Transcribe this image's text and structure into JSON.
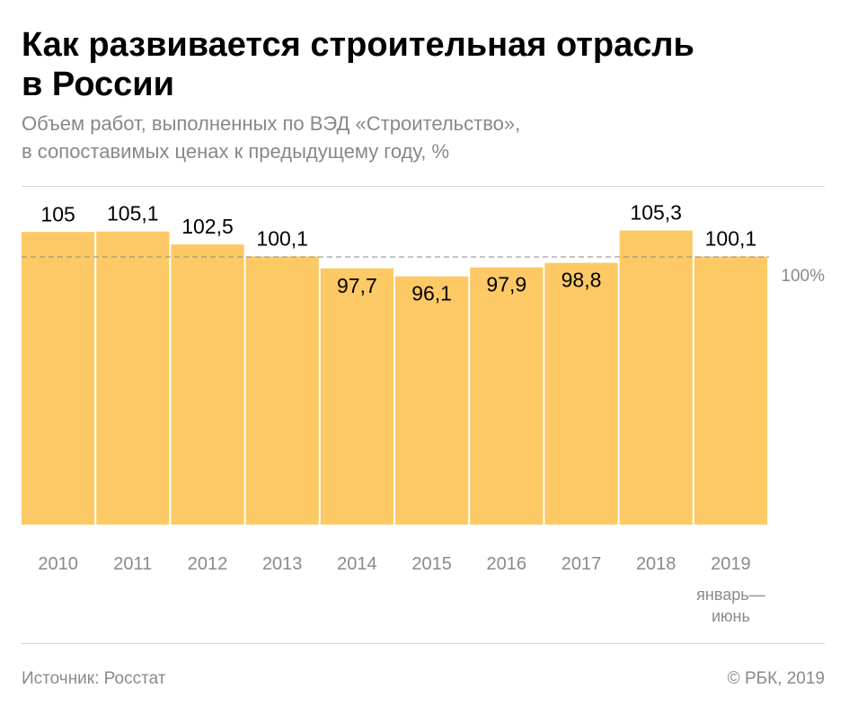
{
  "header": {
    "title_line1": "Как развивается строительная отрасль",
    "title_line2": "в России",
    "subtitle_line1": "Объем работ, выполненных по ВЭД «Строительство»,",
    "subtitle_line2": "в сопоставимых ценах к предыдущему году, %"
  },
  "footer": {
    "source": "Источник: Росстат",
    "copyright": "© РБК, 2019"
  },
  "colors": {
    "bar": "#fcc964",
    "reference_line": "#8a8a8a",
    "label": "#000000",
    "tick": "#8a8a8a"
  },
  "chart_data": {
    "type": "bar",
    "categories": [
      "2010",
      "2011",
      "2012",
      "2013",
      "2014",
      "2015",
      "2016",
      "2017",
      "2018",
      "2019"
    ],
    "category_notes": {
      "2019": [
        "январь—",
        "июнь"
      ]
    },
    "values": [
      105,
      105.1,
      102.5,
      100.1,
      97.7,
      96.1,
      97.9,
      98.8,
      105.3,
      100.1
    ],
    "value_labels": [
      "105",
      "105,1",
      "102,5",
      "100,1",
      "97,7",
      "96,1",
      "97,9",
      "98,8",
      "105,3",
      "100,1"
    ],
    "reference_value": 100,
    "reference_label": "100%",
    "grid": false,
    "legend": "none"
  }
}
